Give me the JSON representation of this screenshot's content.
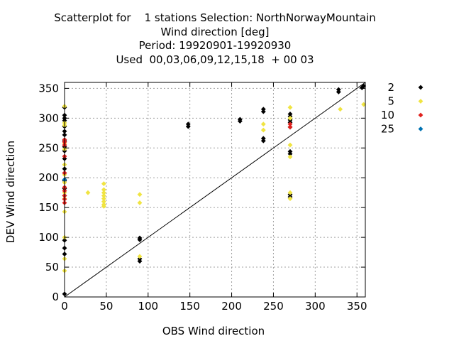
{
  "chart_data": {
    "type": "scatter",
    "title_lines": [
      "Scatterplot for    1 stations Selection: NorthNorwayMountain",
      "Wind direction [deg]",
      "Period: 19920901-19920930",
      "Used  00,03,06,09,12,15,18  + 00 03"
    ],
    "xlabel": "OBS Wind direction",
    "ylabel": "DEV Wind direction",
    "xlim": [
      0,
      360
    ],
    "ylim": [
      0,
      360
    ],
    "xticks": [
      0,
      50,
      100,
      150,
      200,
      250,
      300,
      350
    ],
    "yticks": [
      0,
      50,
      100,
      150,
      200,
      250,
      300,
      350
    ],
    "grid": true,
    "reference_line": "y = x",
    "legend_position": "right",
    "series": [
      {
        "name": "2",
        "color": "#000000",
        "points": [
          [
            0,
            5
          ],
          [
            0,
            72
          ],
          [
            0,
            82
          ],
          [
            0,
            95
          ],
          [
            0,
            170
          ],
          [
            0,
            182
          ],
          [
            0,
            195
          ],
          [
            0,
            208
          ],
          [
            0,
            215
          ],
          [
            0,
            232
          ],
          [
            0,
            245
          ],
          [
            0,
            252
          ],
          [
            0,
            262
          ],
          [
            0,
            272
          ],
          [
            0,
            278
          ],
          [
            0,
            286
          ],
          [
            0,
            296
          ],
          [
            0,
            300
          ],
          [
            0,
            305
          ],
          [
            0,
            318
          ],
          [
            90,
            60
          ],
          [
            90,
            64
          ],
          [
            90,
            96
          ],
          [
            90,
            99
          ],
          [
            148,
            286
          ],
          [
            148,
            290
          ],
          [
            210,
            295
          ],
          [
            210,
            298
          ],
          [
            238,
            262
          ],
          [
            238,
            266
          ],
          [
            238,
            311
          ],
          [
            238,
            315
          ],
          [
            270,
            168
          ],
          [
            270,
            172
          ],
          [
            270,
            240
          ],
          [
            270,
            244
          ],
          [
            270,
            285
          ],
          [
            270,
            293
          ],
          [
            270,
            297
          ],
          [
            270,
            303
          ],
          [
            270,
            307
          ],
          [
            328,
            344
          ],
          [
            328,
            348
          ],
          [
            356,
            351
          ],
          [
            358,
            354
          ]
        ]
      },
      {
        "name": "5",
        "color": "#f0e442",
        "points": [
          [
            0,
            44
          ],
          [
            0,
            64
          ],
          [
            0,
            100
          ],
          [
            0,
            143
          ],
          [
            0,
            165
          ],
          [
            0,
            175
          ],
          [
            0,
            192
          ],
          [
            0,
            205
          ],
          [
            0,
            222
          ],
          [
            0,
            248
          ],
          [
            0,
            258
          ],
          [
            0,
            288
          ],
          [
            0,
            292
          ],
          [
            0,
            320
          ],
          [
            28,
            175
          ],
          [
            47,
            152
          ],
          [
            47,
            155
          ],
          [
            47,
            160
          ],
          [
            47,
            165
          ],
          [
            47,
            170
          ],
          [
            47,
            175
          ],
          [
            47,
            180
          ],
          [
            47,
            190
          ],
          [
            90,
            68
          ],
          [
            90,
            158
          ],
          [
            90,
            172
          ],
          [
            238,
            280
          ],
          [
            238,
            290
          ],
          [
            270,
            165
          ],
          [
            270,
            175
          ],
          [
            270,
            235
          ],
          [
            270,
            255
          ],
          [
            270,
            300
          ],
          [
            270,
            318
          ],
          [
            330,
            315
          ],
          [
            358,
            323
          ]
        ]
      },
      {
        "name": "10",
        "color": "#e0211d",
        "points": [
          [
            0,
            158
          ],
          [
            0,
            164
          ],
          [
            0,
            170
          ],
          [
            0,
            178
          ],
          [
            0,
            184
          ],
          [
            0,
            208
          ],
          [
            0,
            236
          ],
          [
            0,
            255
          ],
          [
            0,
            260
          ],
          [
            0,
            264
          ],
          [
            270,
            285
          ],
          [
            270,
            290
          ]
        ]
      },
      {
        "name": "25",
        "color": "#0072b2",
        "points": [
          [
            0,
            197
          ]
        ]
      }
    ]
  }
}
